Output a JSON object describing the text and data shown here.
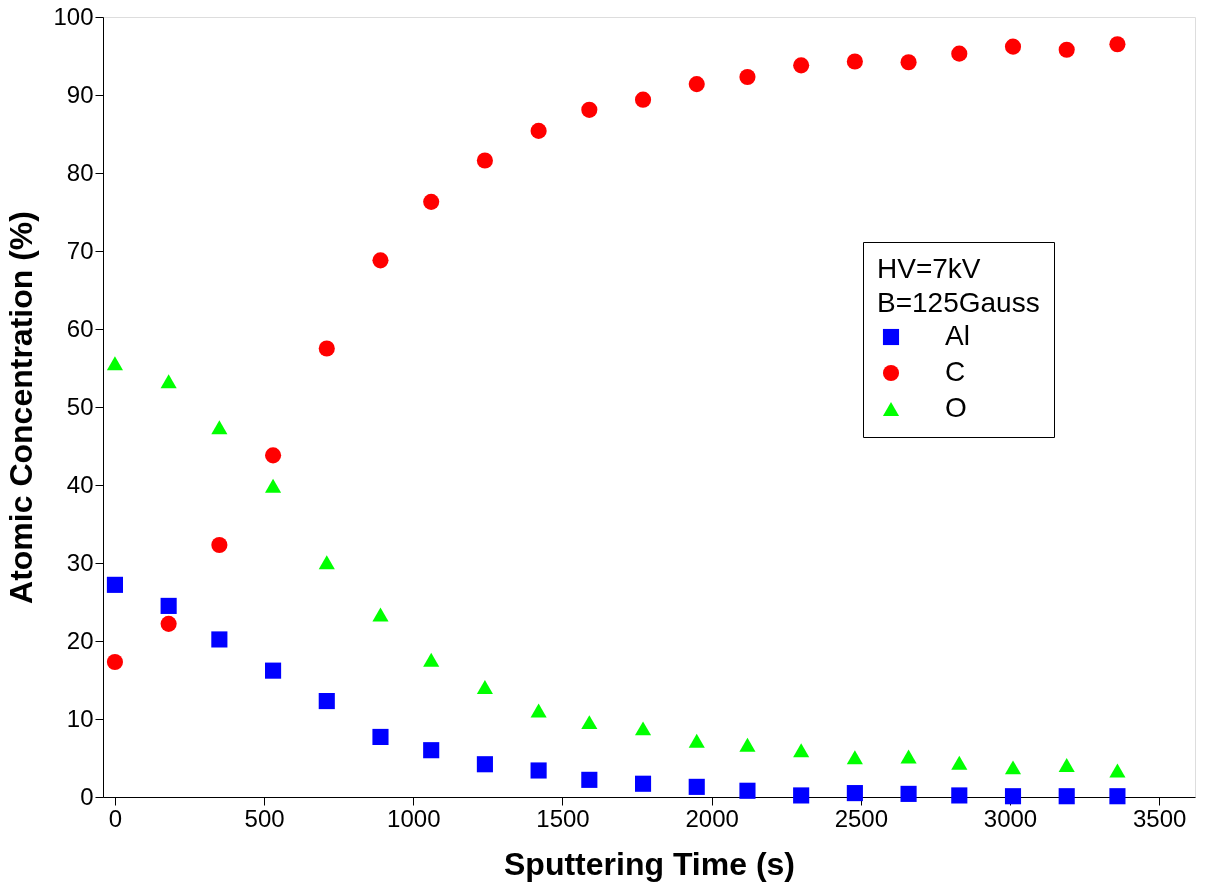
{
  "chart_data": {
    "type": "scatter",
    "xlabel": "Sputtering Time (s)",
    "ylabel": "Atomic Concentration (%)",
    "legend_title": [
      "HV=7kV",
      "B=125Gauss"
    ],
    "x": [
      0,
      180,
      350,
      530,
      710,
      890,
      1060,
      1240,
      1420,
      1590,
      1770,
      1950,
      2120,
      2300,
      2480,
      2660,
      2830,
      3010,
      3190,
      3360
    ],
    "series": [
      {
        "name": "Al",
        "color": "#0000ff",
        "marker": "square",
        "values": [
          27.2,
          24.5,
          20.2,
          16.2,
          12.3,
          7.7,
          6.0,
          4.2,
          3.4,
          2.2,
          1.7,
          1.3,
          0.8,
          0.2,
          0.5,
          0.4,
          0.2,
          0.1,
          0.1,
          0.1
        ]
      },
      {
        "name": "C",
        "color": "#ff0000",
        "marker": "circle",
        "values": [
          17.3,
          22.2,
          32.3,
          43.8,
          57.5,
          68.8,
          76.3,
          81.6,
          85.4,
          88.1,
          89.4,
          91.4,
          92.3,
          93.8,
          94.3,
          94.2,
          95.3,
          96.2,
          95.8,
          96.5
        ]
      },
      {
        "name": "O",
        "color": "#00ff00",
        "marker": "triangle",
        "values": [
          55.6,
          53.3,
          47.4,
          39.9,
          30.1,
          23.4,
          17.6,
          14.1,
          11.1,
          9.6,
          8.8,
          7.2,
          6.7,
          6.0,
          5.1,
          5.2,
          4.4,
          3.8,
          4.1,
          3.4
        ]
      }
    ],
    "xlim": [
      -40,
      3620
    ],
    "ylim": [
      0,
      100
    ],
    "xticks": [
      0,
      500,
      1000,
      1500,
      2000,
      2500,
      3000,
      3500
    ],
    "yticks": [
      0,
      10,
      20,
      30,
      40,
      50,
      60,
      70,
      80,
      90,
      100
    ],
    "grid": false,
    "legend": "right"
  }
}
